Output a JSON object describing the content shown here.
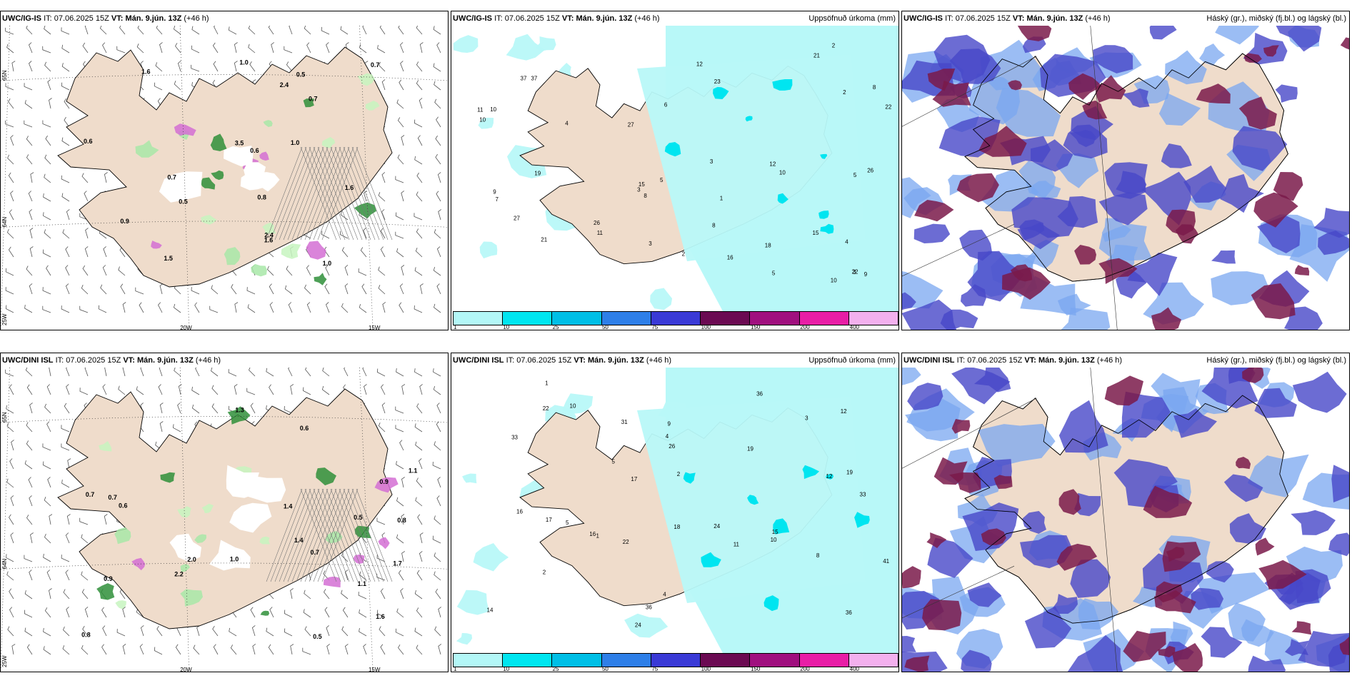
{
  "panels": {
    "p1": {
      "model": "UWC/IG-IS",
      "it_label": "IT:",
      "it": "07.06.2025 15Z",
      "vt_label": "VT:",
      "vt": "Mán. 9.jún. 13Z",
      "lead": "(+46 h)",
      "right": ""
    },
    "p2": {
      "model": "UWC/IG-IS",
      "it_label": "IT:",
      "it": "07.06.2025 15Z",
      "vt_label": "VT:",
      "vt": "Mán. 9.jún. 13Z",
      "lead": "(+46 h)",
      "right": "Uppsöfnuð úrkoma (mm)"
    },
    "p3": {
      "model": "UWC/IG-IS",
      "it_label": "IT:",
      "it": "07.06.2025 15Z",
      "vt_label": "VT:",
      "vt": "Mán. 9.jún. 13Z",
      "lead": "(+46 h)",
      "right": "Háský (gr.), miðský (fj.bl.) og lágský (bl.)"
    },
    "p4": {
      "model": "UWC/DINI ISL",
      "it_label": "IT:",
      "it": "07.06.2025 15Z",
      "vt_label": "VT:",
      "vt": "Mán. 9.jún. 13Z",
      "lead": "(+46 h)",
      "right": ""
    },
    "p5": {
      "model": "UWC/DINI ISL",
      "it_label": "IT:",
      "it": "07.06.2025 15Z",
      "vt_label": "VT:",
      "vt": "Mán. 9.jún. 13Z",
      "lead": "(+46 h)",
      "right": "Uppsöfnuð úrkoma (mm)"
    },
    "p6": {
      "model": "UWC/DINI ISL",
      "it_label": "IT:",
      "it": "07.06.2025 15Z",
      "vt_label": "VT:",
      "vt": "Mán. 9.jún. 13Z",
      "lead": "(+46 h)",
      "right": "Háský (gr.), miðský (fj.bl.) og lágský (bl.)"
    }
  },
  "axes": {
    "lat_top": "65N",
    "lat_mid": "64N",
    "lon_w": "25W",
    "lon_20": "20W",
    "lon_15": "15W"
  },
  "colorbar": {
    "labels": [
      "1",
      "10",
      "25",
      "50",
      "75",
      "100",
      "150",
      "200",
      "400"
    ],
    "colors": [
      "#b3f7f7",
      "#00e6f0",
      "#00bfe6",
      "#2e7fe8",
      "#3a3ad6",
      "#6b0a52",
      "#a0107f",
      "#e81ea6",
      "#f3b0ee"
    ]
  },
  "colors": {
    "land": "#efdccb",
    "precip": "#b8f8f8",
    "precip_heavy": "#00e5f0",
    "cloud_high": "#7a1a4a",
    "cloud_mid": "#4747c8",
    "cloud_low": "#7aa7f0",
    "wind": "#555555"
  },
  "map1_labels": [
    "0.6",
    "1.6",
    "0.6",
    "0.7",
    "1.6",
    "2.4",
    "0.7",
    "1.0",
    "0.9",
    "3.5",
    "1.5",
    "0.7",
    "0.5",
    "1.0",
    "0.5",
    "0.8",
    "2.4",
    "1.0",
    "1.6"
  ],
  "map2_labels": [
    "3",
    "3",
    "10",
    "4",
    "8",
    "5",
    "2",
    "12",
    "6",
    "8",
    "16",
    "37",
    "21",
    "7",
    "5",
    "27",
    "9",
    "11",
    "10",
    "15",
    "11",
    "4",
    "27",
    "12",
    "10",
    "23",
    "26",
    "21",
    "18",
    "22",
    "37",
    "19",
    "22",
    "26",
    "10",
    "9",
    "3",
    "2",
    "5",
    "15",
    "8",
    "1",
    "3",
    "2"
  ],
  "map4_labels": [
    "1.1",
    "0.7",
    "0.6",
    "0.7",
    "0.7",
    "1.3",
    "2.0",
    "0.8",
    "1.4",
    "0.5",
    "0.6",
    "0.9",
    "0.5",
    "1.1",
    "1.0",
    "0.8",
    "0.9",
    "1.7",
    "1.4",
    "1.6",
    "2.2"
  ],
  "map5_labels": [
    "2",
    "5",
    "1",
    "4",
    "19",
    "36",
    "17",
    "24",
    "16",
    "22",
    "33",
    "10",
    "12",
    "19",
    "22",
    "17",
    "11",
    "12",
    "36",
    "18",
    "41",
    "14",
    "33",
    "36",
    "31",
    "26",
    "24",
    "15",
    "16",
    "2",
    "1",
    "9",
    "4",
    "10",
    "8",
    "5",
    "3"
  ]
}
